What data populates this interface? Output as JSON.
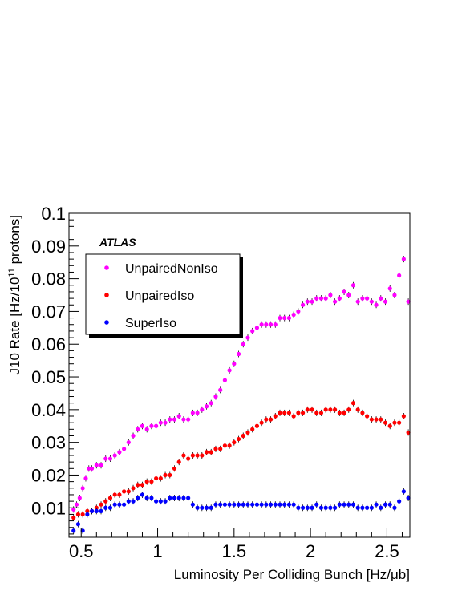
{
  "chart_data": {
    "type": "scatter",
    "experiment_label": "ATLAS",
    "xlabel": "Luminosity Per Colliding Bunch [Hz/μb]",
    "ylabel_main": "J10 Rate [Hz/10",
    "ylabel_sup": "11",
    "ylabel_tail": " protons]",
    "xlim": [
      0.42,
      2.65
    ],
    "ylim": [
      0.001,
      0.1
    ],
    "x_ticks": [
      0.5,
      1,
      1.5,
      2,
      2.5
    ],
    "x_tick_labels": [
      "0.5",
      "1",
      "1.5",
      "2",
      "2.5"
    ],
    "y_ticks": [
      0.01,
      0.02,
      0.03,
      0.04,
      0.05,
      0.06,
      0.07,
      0.08,
      0.09,
      0.1
    ],
    "y_tick_labels": [
      "0.01",
      "0.02",
      "0.03",
      "0.04",
      "0.05",
      "0.06",
      "0.07",
      "0.08",
      "0.09",
      "0.1"
    ],
    "grid": false,
    "legend_position": "top-left",
    "series": [
      {
        "name": "UnpairedNonIso",
        "color": "#ff00ff",
        "points": [
          [
            0.45,
            0.0095
          ],
          [
            0.47,
            0.011
          ],
          [
            0.49,
            0.013
          ],
          [
            0.51,
            0.016
          ],
          [
            0.53,
            0.019
          ],
          [
            0.55,
            0.022
          ],
          [
            0.57,
            0.022
          ],
          [
            0.6,
            0.023
          ],
          [
            0.63,
            0.023
          ],
          [
            0.66,
            0.025
          ],
          [
            0.69,
            0.025
          ],
          [
            0.72,
            0.026
          ],
          [
            0.75,
            0.027
          ],
          [
            0.78,
            0.028
          ],
          [
            0.81,
            0.03
          ],
          [
            0.84,
            0.032
          ],
          [
            0.87,
            0.034
          ],
          [
            0.9,
            0.035
          ],
          [
            0.93,
            0.034
          ],
          [
            0.96,
            0.035
          ],
          [
            0.99,
            0.035
          ],
          [
            1.02,
            0.036
          ],
          [
            1.05,
            0.036
          ],
          [
            1.08,
            0.037
          ],
          [
            1.11,
            0.037
          ],
          [
            1.14,
            0.038
          ],
          [
            1.17,
            0.037
          ],
          [
            1.2,
            0.037
          ],
          [
            1.23,
            0.039
          ],
          [
            1.26,
            0.039
          ],
          [
            1.29,
            0.04
          ],
          [
            1.32,
            0.041
          ],
          [
            1.35,
            0.042
          ],
          [
            1.38,
            0.044
          ],
          [
            1.41,
            0.046
          ],
          [
            1.44,
            0.049
          ],
          [
            1.47,
            0.052
          ],
          [
            1.5,
            0.054
          ],
          [
            1.53,
            0.057
          ],
          [
            1.56,
            0.06
          ],
          [
            1.59,
            0.062
          ],
          [
            1.62,
            0.064
          ],
          [
            1.65,
            0.065
          ],
          [
            1.68,
            0.066
          ],
          [
            1.71,
            0.066
          ],
          [
            1.74,
            0.066
          ],
          [
            1.77,
            0.066
          ],
          [
            1.8,
            0.068
          ],
          [
            1.83,
            0.068
          ],
          [
            1.86,
            0.068
          ],
          [
            1.89,
            0.069
          ],
          [
            1.92,
            0.07
          ],
          [
            1.95,
            0.072
          ],
          [
            1.98,
            0.073
          ],
          [
            2.01,
            0.073
          ],
          [
            2.04,
            0.074
          ],
          [
            2.07,
            0.074
          ],
          [
            2.1,
            0.074
          ],
          [
            2.13,
            0.075
          ],
          [
            2.16,
            0.073
          ],
          [
            2.19,
            0.074
          ],
          [
            2.22,
            0.076
          ],
          [
            2.25,
            0.075
          ],
          [
            2.28,
            0.078
          ],
          [
            2.31,
            0.073
          ],
          [
            2.34,
            0.074
          ],
          [
            2.37,
            0.074
          ],
          [
            2.4,
            0.073
          ],
          [
            2.43,
            0.072
          ],
          [
            2.46,
            0.074
          ],
          [
            2.49,
            0.073
          ],
          [
            2.52,
            0.077
          ],
          [
            2.55,
            0.075
          ],
          [
            2.58,
            0.081
          ],
          [
            2.61,
            0.086
          ],
          [
            2.64,
            0.073
          ]
        ]
      },
      {
        "name": "UnpairedIso",
        "color": "#ff0000",
        "points": [
          [
            0.45,
            0.007
          ],
          [
            0.48,
            0.008
          ],
          [
            0.51,
            0.008
          ],
          [
            0.54,
            0.009
          ],
          [
            0.57,
            0.009
          ],
          [
            0.6,
            0.01
          ],
          [
            0.63,
            0.011
          ],
          [
            0.66,
            0.012
          ],
          [
            0.69,
            0.013
          ],
          [
            0.72,
            0.014
          ],
          [
            0.75,
            0.014
          ],
          [
            0.78,
            0.015
          ],
          [
            0.81,
            0.015
          ],
          [
            0.84,
            0.016
          ],
          [
            0.87,
            0.017
          ],
          [
            0.9,
            0.017
          ],
          [
            0.93,
            0.018
          ],
          [
            0.96,
            0.018
          ],
          [
            0.99,
            0.019
          ],
          [
            1.02,
            0.019
          ],
          [
            1.05,
            0.02
          ],
          [
            1.08,
            0.02
          ],
          [
            1.11,
            0.022
          ],
          [
            1.14,
            0.024
          ],
          [
            1.17,
            0.026
          ],
          [
            1.2,
            0.025
          ],
          [
            1.23,
            0.026
          ],
          [
            1.26,
            0.026
          ],
          [
            1.29,
            0.026
          ],
          [
            1.32,
            0.027
          ],
          [
            1.35,
            0.027
          ],
          [
            1.38,
            0.028
          ],
          [
            1.41,
            0.028
          ],
          [
            1.44,
            0.029
          ],
          [
            1.47,
            0.029
          ],
          [
            1.5,
            0.03
          ],
          [
            1.53,
            0.031
          ],
          [
            1.56,
            0.032
          ],
          [
            1.59,
            0.033
          ],
          [
            1.62,
            0.034
          ],
          [
            1.65,
            0.035
          ],
          [
            1.68,
            0.036
          ],
          [
            1.71,
            0.037
          ],
          [
            1.74,
            0.037
          ],
          [
            1.77,
            0.038
          ],
          [
            1.8,
            0.039
          ],
          [
            1.83,
            0.039
          ],
          [
            1.86,
            0.039
          ],
          [
            1.89,
            0.038
          ],
          [
            1.92,
            0.039
          ],
          [
            1.95,
            0.039
          ],
          [
            1.98,
            0.04
          ],
          [
            2.01,
            0.04
          ],
          [
            2.04,
            0.039
          ],
          [
            2.07,
            0.039
          ],
          [
            2.1,
            0.04
          ],
          [
            2.13,
            0.04
          ],
          [
            2.16,
            0.04
          ],
          [
            2.19,
            0.039
          ],
          [
            2.22,
            0.039
          ],
          [
            2.25,
            0.04
          ],
          [
            2.28,
            0.042
          ],
          [
            2.31,
            0.04
          ],
          [
            2.34,
            0.039
          ],
          [
            2.37,
            0.038
          ],
          [
            2.4,
            0.037
          ],
          [
            2.43,
            0.037
          ],
          [
            2.46,
            0.037
          ],
          [
            2.49,
            0.036
          ],
          [
            2.52,
            0.035
          ],
          [
            2.55,
            0.036
          ],
          [
            2.58,
            0.036
          ],
          [
            2.61,
            0.038
          ],
          [
            2.64,
            0.033
          ]
        ]
      },
      {
        "name": "SuperIso",
        "color": "#0000ff",
        "points": [
          [
            0.45,
            0.003
          ],
          [
            0.48,
            0.005
          ],
          [
            0.51,
            0.003
          ],
          [
            0.54,
            0.008
          ],
          [
            0.57,
            0.009
          ],
          [
            0.6,
            0.009
          ],
          [
            0.63,
            0.009
          ],
          [
            0.66,
            0.01
          ],
          [
            0.69,
            0.01
          ],
          [
            0.72,
            0.011
          ],
          [
            0.75,
            0.011
          ],
          [
            0.78,
            0.011
          ],
          [
            0.81,
            0.012
          ],
          [
            0.84,
            0.012
          ],
          [
            0.87,
            0.013
          ],
          [
            0.9,
            0.014
          ],
          [
            0.93,
            0.013
          ],
          [
            0.96,
            0.013
          ],
          [
            0.99,
            0.012
          ],
          [
            1.02,
            0.012
          ],
          [
            1.05,
            0.012
          ],
          [
            1.08,
            0.013
          ],
          [
            1.11,
            0.013
          ],
          [
            1.14,
            0.013
          ],
          [
            1.17,
            0.013
          ],
          [
            1.2,
            0.013
          ],
          [
            1.23,
            0.011
          ],
          [
            1.26,
            0.01
          ],
          [
            1.29,
            0.01
          ],
          [
            1.32,
            0.01
          ],
          [
            1.35,
            0.01
          ],
          [
            1.38,
            0.011
          ],
          [
            1.41,
            0.011
          ],
          [
            1.44,
            0.011
          ],
          [
            1.47,
            0.011
          ],
          [
            1.5,
            0.011
          ],
          [
            1.53,
            0.011
          ],
          [
            1.56,
            0.011
          ],
          [
            1.59,
            0.011
          ],
          [
            1.62,
            0.011
          ],
          [
            1.65,
            0.011
          ],
          [
            1.68,
            0.011
          ],
          [
            1.71,
            0.011
          ],
          [
            1.74,
            0.011
          ],
          [
            1.77,
            0.011
          ],
          [
            1.8,
            0.011
          ],
          [
            1.83,
            0.011
          ],
          [
            1.86,
            0.011
          ],
          [
            1.89,
            0.011
          ],
          [
            1.92,
            0.01
          ],
          [
            1.95,
            0.01
          ],
          [
            1.98,
            0.01
          ],
          [
            2.01,
            0.01
          ],
          [
            2.04,
            0.011
          ],
          [
            2.07,
            0.01
          ],
          [
            2.1,
            0.01
          ],
          [
            2.13,
            0.01
          ],
          [
            2.16,
            0.01
          ],
          [
            2.19,
            0.011
          ],
          [
            2.22,
            0.011
          ],
          [
            2.25,
            0.011
          ],
          [
            2.28,
            0.011
          ],
          [
            2.31,
            0.01
          ],
          [
            2.34,
            0.01
          ],
          [
            2.37,
            0.01
          ],
          [
            2.4,
            0.01
          ],
          [
            2.43,
            0.011
          ],
          [
            2.46,
            0.01
          ],
          [
            2.49,
            0.011
          ],
          [
            2.52,
            0.011
          ],
          [
            2.55,
            0.01
          ],
          [
            2.58,
            0.012
          ],
          [
            2.61,
            0.015
          ],
          [
            2.64,
            0.013
          ]
        ]
      }
    ]
  }
}
